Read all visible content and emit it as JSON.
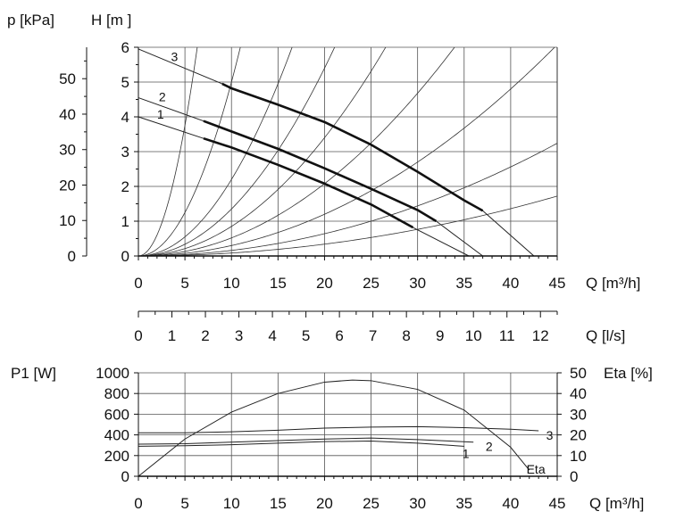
{
  "chart_data": [
    {
      "type": "line",
      "title": "",
      "ylabel_left": "p [kPa]",
      "ylabel_right": "H [m ]",
      "xlabel": "Q [m³/h]",
      "x_ticks": [
        0,
        5,
        10,
        15,
        20,
        25,
        30,
        35,
        40,
        45
      ],
      "y_ticks_H": [
        0,
        1,
        2,
        3,
        4,
        5,
        6
      ],
      "y_ticks_p": [
        0,
        10,
        20,
        30,
        40,
        50
      ],
      "xlim": [
        0,
        45
      ],
      "ylim": [
        0,
        6
      ],
      "grid": true,
      "series": [
        {
          "name": "1",
          "x": [
            0,
            7,
            10,
            15,
            20,
            25,
            29.5,
            35.5
          ],
          "y": [
            4.0,
            3.38,
            3.12,
            2.62,
            2.08,
            1.48,
            0.82,
            0
          ]
        },
        {
          "name": "2",
          "x": [
            0,
            7,
            10,
            15,
            20,
            25,
            30,
            32,
            37
          ],
          "y": [
            4.55,
            3.88,
            3.58,
            3.08,
            2.52,
            1.93,
            1.32,
            1.0,
            0
          ]
        },
        {
          "name": "3",
          "x": [
            0,
            9,
            10,
            15,
            20,
            25,
            30,
            35,
            37,
            42.5
          ],
          "y": [
            5.95,
            4.95,
            4.82,
            4.35,
            3.85,
            3.2,
            2.42,
            1.6,
            1.3,
            0
          ]
        }
      ],
      "system_curve_k": [
        0.15,
        0.05,
        0.022,
        0.0135,
        0.0085,
        0.0052,
        0.003,
        0.0016,
        0.00085
      ],
      "labels": [
        "1",
        "2",
        "3"
      ]
    },
    {
      "type": "axis",
      "xlabel": "Q [l/s]",
      "x_ticks": [
        0,
        1,
        2,
        3,
        4,
        5,
        6,
        7,
        8,
        9,
        10,
        11,
        12
      ],
      "xlim": [
        0,
        12.5
      ]
    },
    {
      "type": "line",
      "title": "",
      "ylabel_left": "P1 [W]",
      "ylabel_right": "Eta [%]",
      "xlabel": "Q [m³/h]",
      "x_ticks": [
        0,
        5,
        10,
        15,
        20,
        25,
        30,
        35,
        40,
        45
      ],
      "y_ticks_left": [
        0,
        200,
        400,
        600,
        800,
        1000
      ],
      "y_ticks_right": [
        0,
        10,
        20,
        30,
        40,
        50
      ],
      "xlim": [
        0,
        45
      ],
      "ylim_left": [
        0,
        1000
      ],
      "ylim_right": [
        0,
        50
      ],
      "grid": true,
      "series": [
        {
          "name": "1",
          "x": [
            0,
            5,
            10,
            15,
            20,
            25,
            30,
            35
          ],
          "y": [
            290,
            295,
            305,
            320,
            335,
            340,
            320,
            290
          ]
        },
        {
          "name": "2",
          "x": [
            0,
            5,
            10,
            15,
            20,
            25,
            30,
            36
          ],
          "y": [
            310,
            315,
            330,
            345,
            360,
            370,
            355,
            330
          ]
        },
        {
          "name": "3",
          "x": [
            0,
            5,
            10,
            15,
            20,
            25,
            30,
            35,
            40,
            43
          ],
          "y": [
            420,
            420,
            430,
            445,
            465,
            475,
            480,
            470,
            455,
            440
          ]
        },
        {
          "name": "Eta",
          "x": [
            0,
            5,
            10,
            15,
            20,
            23,
            25,
            30,
            35,
            40,
            42
          ],
          "y": [
            0,
            18,
            31,
            40,
            45.5,
            46.5,
            46.2,
            42,
            32,
            14,
            3
          ]
        }
      ],
      "labels": [
        "1",
        "2",
        "3",
        "Eta"
      ]
    }
  ]
}
